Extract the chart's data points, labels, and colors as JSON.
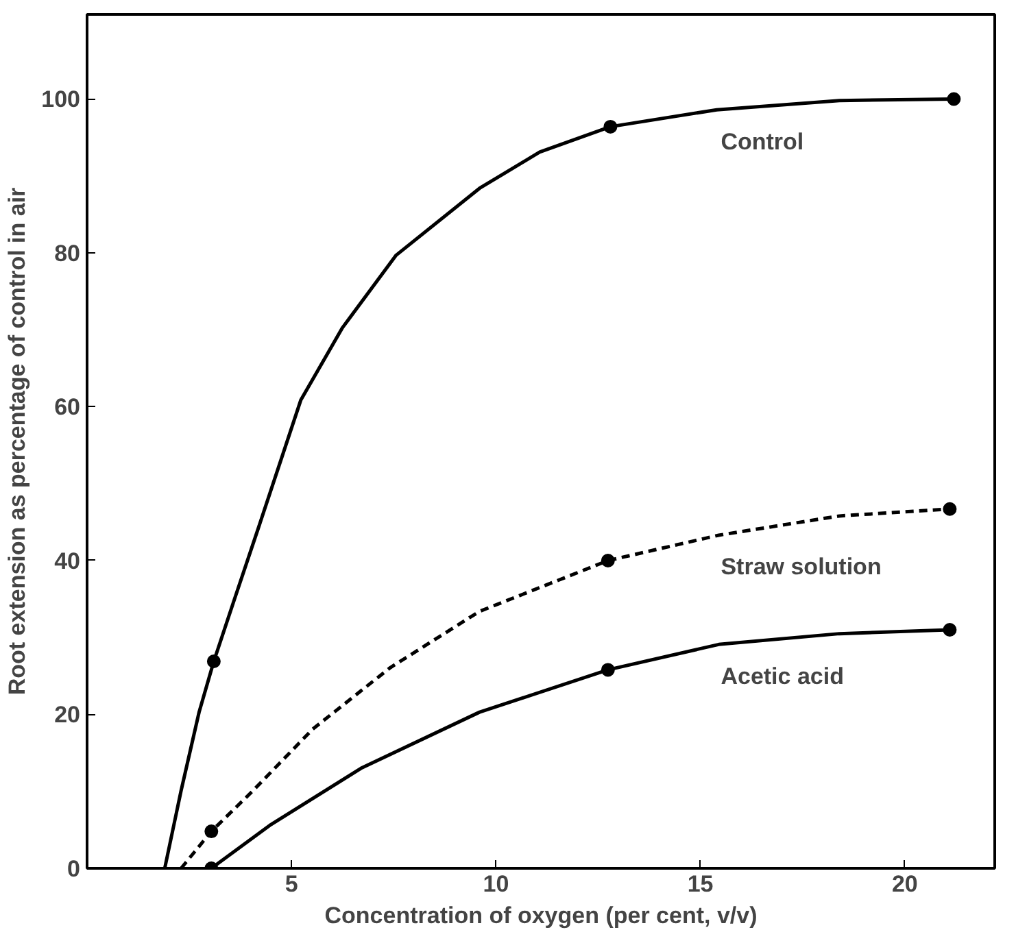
{
  "chart_data": {
    "type": "line",
    "xlabel": "Concentration of oxygen (per cent, v/v)",
    "ylabel": "Root extension as percentage of control in air",
    "xlim": [
      0,
      22.2
    ],
    "ylim": [
      0,
      111
    ],
    "xticks": [
      5,
      10,
      15,
      20
    ],
    "yticks": [
      0,
      20,
      40,
      60,
      80,
      100
    ],
    "grid": false,
    "series": [
      {
        "name": "Control",
        "color": "#000000",
        "line_style": "solid",
        "marker": "none",
        "x": [
          1.9,
          2.3,
          2.74,
          3.1,
          3.6,
          4.2,
          5.23,
          6.25,
          7.56,
          9.6,
          11.07,
          12.8,
          15.4,
          18.4,
          21.2
        ],
        "values": [
          0,
          10.1,
          20.3,
          26.9,
          34.9,
          44.4,
          60.9,
          70.3,
          79.7,
          88.4,
          93.1,
          96.4,
          98.6,
          99.8,
          100
        ]
      },
      {
        "name": "Straw solution",
        "color": "#000000",
        "line_style": "dashed",
        "marker": "none",
        "x": [
          2.3,
          3.04,
          4.06,
          5.52,
          7.42,
          9.6,
          12.74,
          15.45,
          18.4,
          21.1
        ],
        "values": [
          0,
          4.8,
          10.1,
          18.1,
          26.1,
          33.4,
          40,
          43.3,
          45.8,
          46.7
        ]
      },
      {
        "name": "Acetic acid",
        "color": "#000000",
        "line_style": "solid",
        "marker": "none",
        "x": [
          3.04,
          4.5,
          6.7,
          9.6,
          12.74,
          15.45,
          18.4,
          21.1
        ],
        "values": [
          0,
          5.7,
          13,
          20.3,
          25.8,
          29.1,
          30.5,
          31
        ]
      },
      {
        "type": "scatter",
        "color": "#000000",
        "marker": "circle",
        "x": [
          3.1,
          12.8,
          21.2
        ],
        "values": [
          26.9,
          96.4,
          100
        ]
      },
      {
        "type": "scatter",
        "color": "#000000",
        "marker": "circle",
        "x": [
          3.04,
          12.74,
          21.1
        ],
        "values": [
          4.8,
          40,
          46.7
        ]
      },
      {
        "type": "scatter",
        "color": "#000000",
        "marker": "circle",
        "x": [
          3.04,
          12.74,
          21.1
        ],
        "values": [
          0,
          25.8,
          31
        ]
      }
    ]
  }
}
